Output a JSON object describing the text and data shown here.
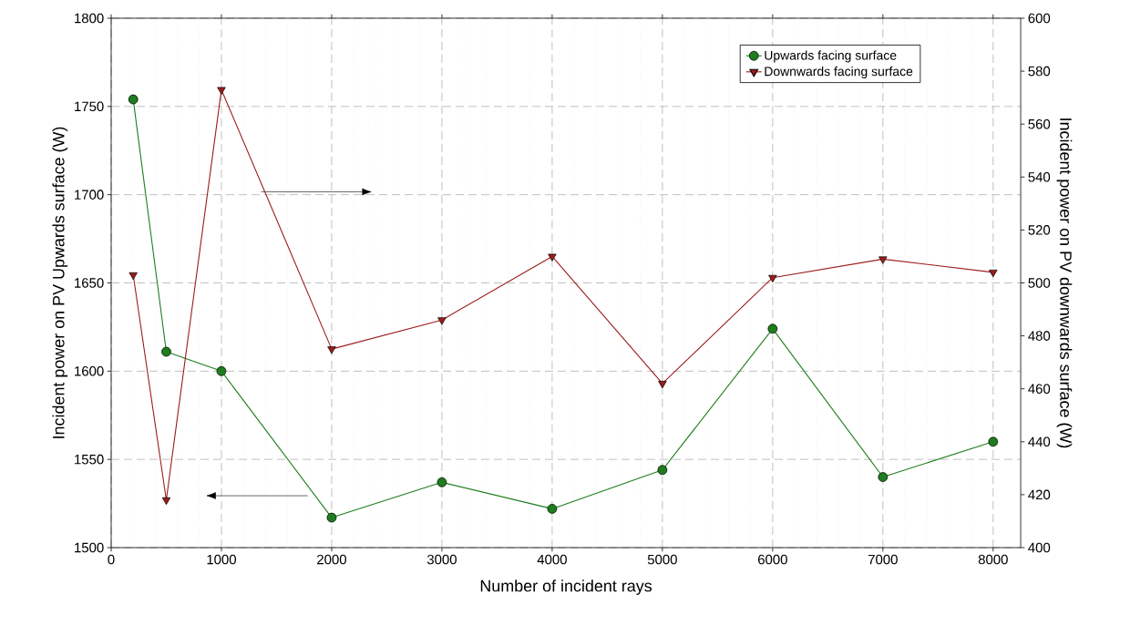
{
  "chart_data": {
    "type": "line",
    "xlabel": "Number of incident rays",
    "ylabel": "Incident  power on PV Upwards surface (W)",
    "y2label": "Incident  power on PV downwards surface (W)",
    "x": [
      200,
      500,
      1000,
      2000,
      3000,
      4000,
      5000,
      6000,
      7000,
      8000
    ],
    "series": [
      {
        "name": "Upwards facing surface",
        "color": "#1e7d1e",
        "marker": "circle",
        "values": [
          1754,
          1611,
          1600,
          1517,
          1537,
          1522,
          1544,
          1624,
          1540,
          1560
        ]
      },
      {
        "name": "Downwards facing surface",
        "color": "#9b1c1c",
        "marker": "triangle",
        "axis": "y2",
        "values": [
          503,
          418,
          573,
          475,
          486,
          510,
          462,
          502,
          509,
          504
        ]
      }
    ],
    "xlim": [
      0,
      8250
    ],
    "xticks": [
      0,
      1000,
      2000,
      3000,
      4000,
      5000,
      6000,
      7000,
      8000
    ],
    "ylim": [
      1500,
      1800
    ],
    "yticks": [
      1500,
      1550,
      1600,
      1650,
      1700,
      1750,
      1800
    ],
    "y2lim": [
      400,
      600
    ],
    "y2ticks": [
      400,
      420,
      440,
      460,
      480,
      500,
      520,
      540,
      560,
      580,
      600
    ],
    "grid": true,
    "legend": "top right",
    "line_style": "solid"
  }
}
